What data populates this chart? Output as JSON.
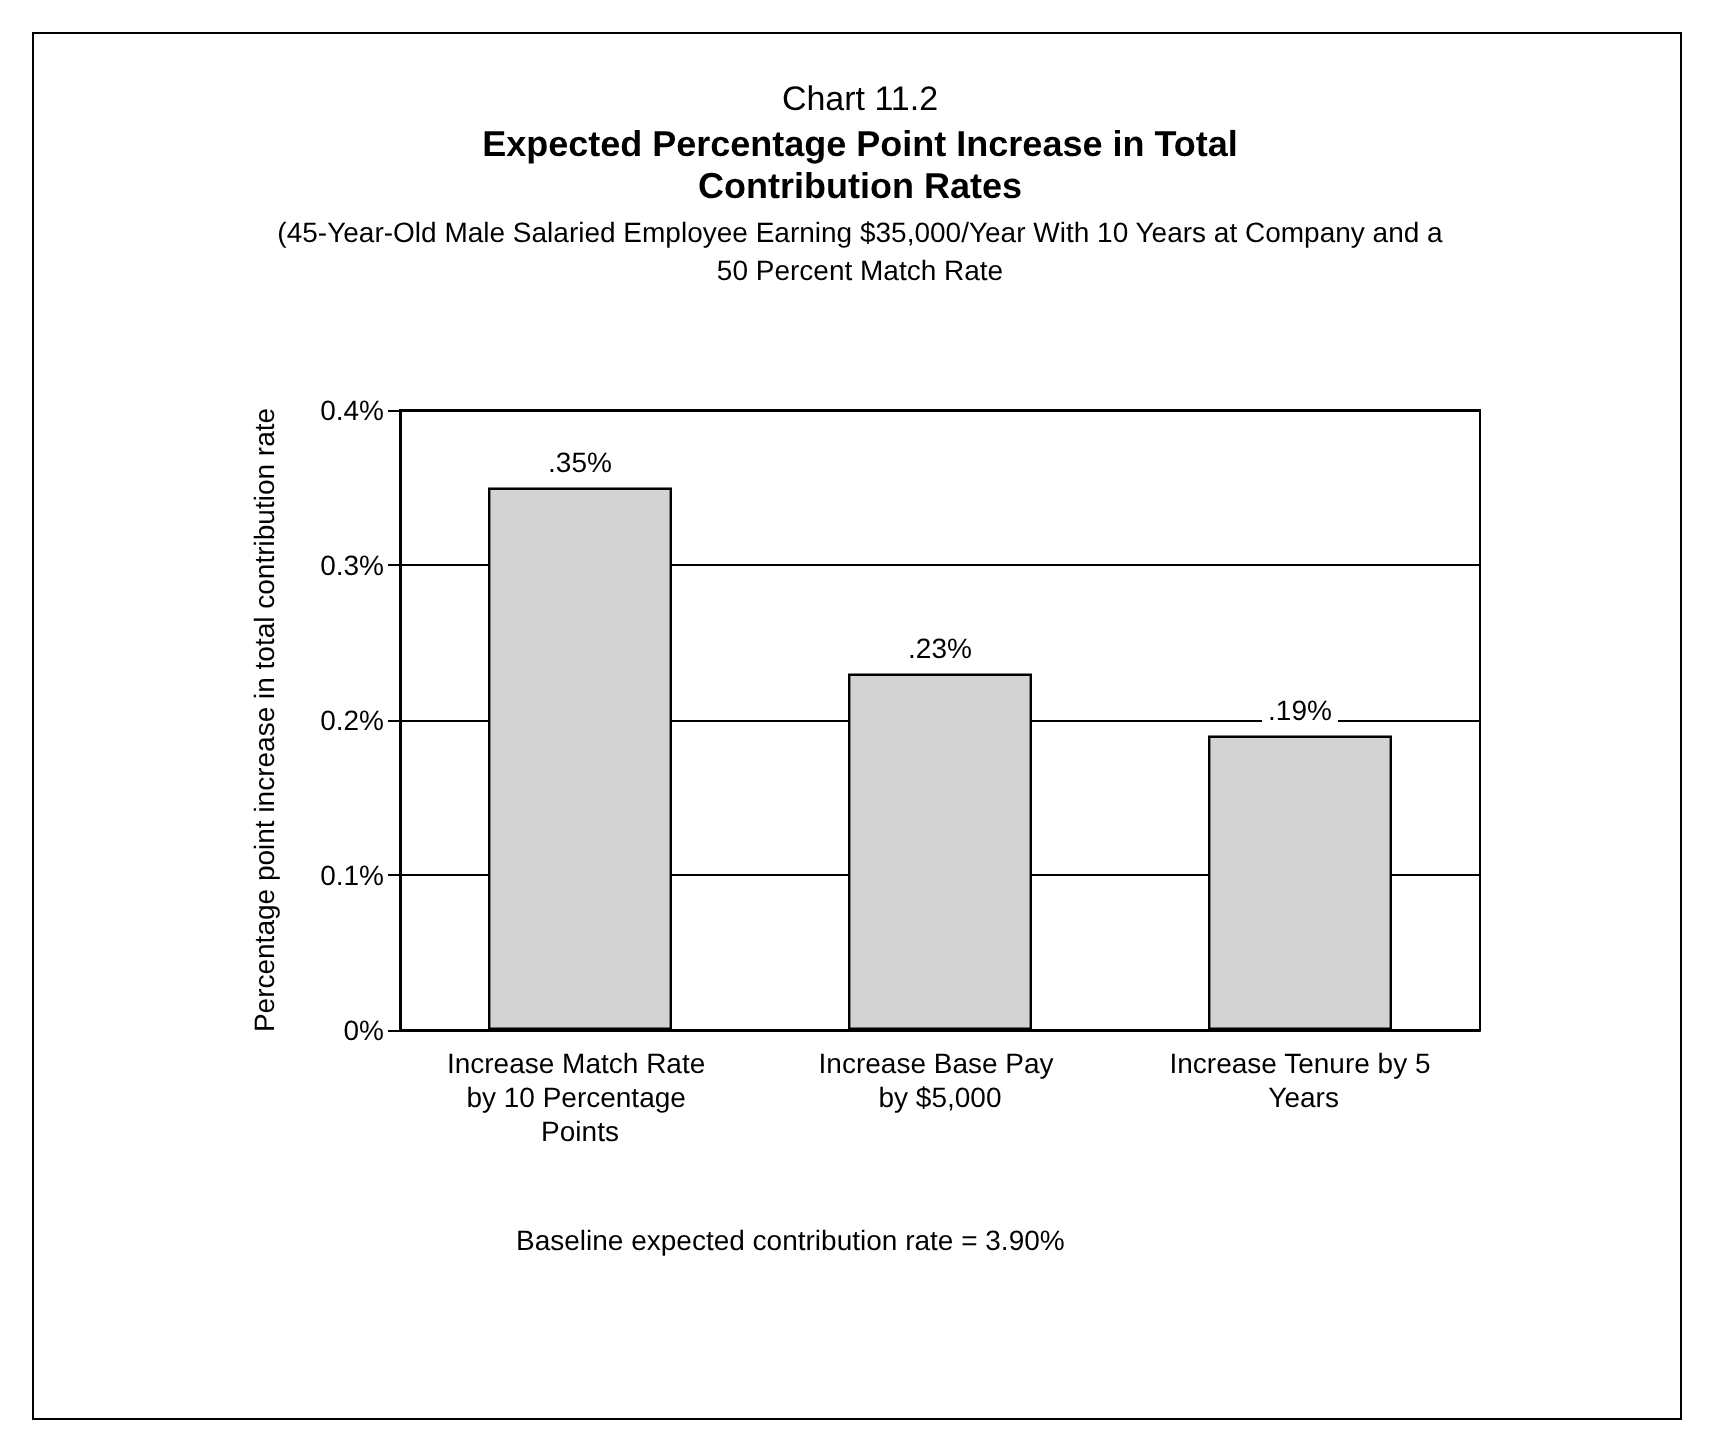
{
  "chart_data": {
    "type": "bar",
    "title": "Expected Percentage Point Increase in Total Contribution Rates",
    "subtitle": "(45-Year-Old Male Salaried Employee Earning $35,000/Year With 10 Years at Company and a 50 Percent Match Rate",
    "ylabel": "Percentage point increase in total contribution rate",
    "annotations": [
      "Chart 11.2",
      "Baseline expected contribution rate = 3.90%"
    ],
    "categories": [
      "Increase Match Rate by 10 Percentage Points",
      "Increase Base Pay by $5,000",
      "Increase Tenure by 5 Years"
    ],
    "values": [
      0.35,
      0.23,
      0.19
    ],
    "value_labels": [
      ".35%",
      ".23%",
      ".19%"
    ],
    "color": "#d3d3d3",
    "ylim": [
      0,
      0.4
    ],
    "yticks": [
      {
        "value": 0,
        "label": "0%"
      },
      {
        "value": 0.1,
        "label": "0.1%"
      },
      {
        "value": 0.2,
        "label": "0.2%"
      },
      {
        "value": 0.3,
        "label": "0.3%"
      },
      {
        "value": 0.4,
        "label": "0.4%"
      }
    ],
    "grid": "y"
  }
}
